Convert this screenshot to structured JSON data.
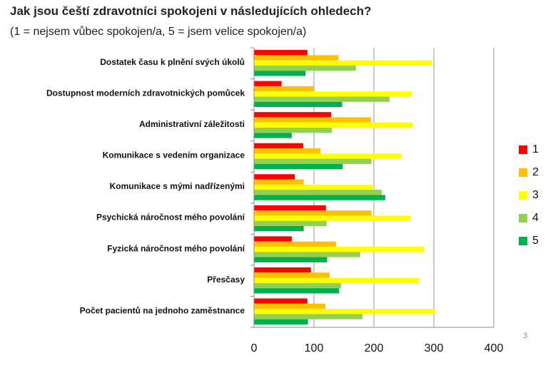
{
  "slide": {
    "title": "Jak jsou čeští zdravotníci spokojeni v následujících ohledech?",
    "subtitle": "(1 = nejsem vůbec spokojen/a, 5 = jsem velice spokojen/a)",
    "page_number": "3"
  },
  "chart_data": {
    "type": "bar",
    "orientation": "horizontal",
    "title": "",
    "xlabel": "",
    "ylabel": "",
    "xlim": [
      0,
      400
    ],
    "xticks": [
      0,
      100,
      200,
      300,
      400
    ],
    "grid": true,
    "legend_position": "right",
    "categories": [
      "Dostatek času k plnění svých úkolů",
      "Dostupnost moderních zdravotnických pomůcek",
      "Administrativní záležitosti",
      "Komunikace s vedením organizace",
      "Komunikace s mými nadřízenými",
      "Psychická náročnost mého povolání",
      "Fyzická náročnost mého povolání",
      "Přesčasy",
      "Počet pacientů na jednoho zaměstnance"
    ],
    "series": [
      {
        "name": "1",
        "color": "#ff0000",
        "values": [
          89,
          46,
          129,
          82,
          68,
          120,
          63,
          95,
          89
        ]
      },
      {
        "name": "2",
        "color": "#ffc000",
        "values": [
          141,
          100,
          195,
          111,
          83,
          196,
          137,
          126,
          119
        ]
      },
      {
        "name": "3",
        "color": "#ffff00",
        "values": [
          297,
          263,
          265,
          246,
          200,
          262,
          284,
          275,
          303
        ]
      },
      {
        "name": "4",
        "color": "#92d050",
        "values": [
          170,
          226,
          130,
          196,
          213,
          121,
          177,
          145,
          181
        ]
      },
      {
        "name": "5",
        "color": "#00b050",
        "values": [
          86,
          147,
          63,
          148,
          219,
          83,
          122,
          142,
          90
        ]
      }
    ]
  }
}
